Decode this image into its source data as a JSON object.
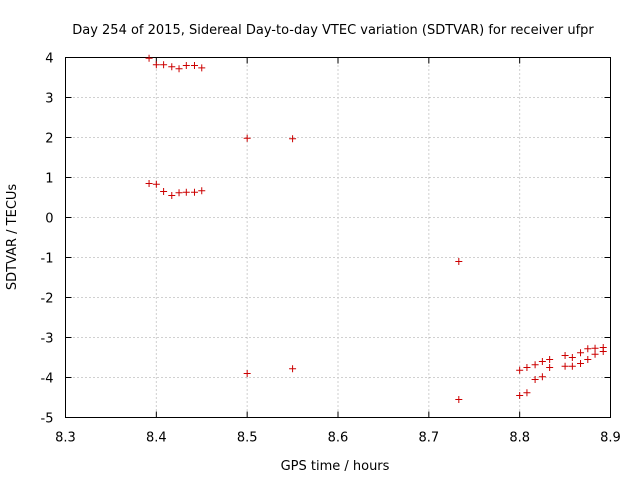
{
  "chart_data": {
    "type": "scatter",
    "title": "Day 254 of 2015, Sidereal Day-to-day VTEC variation (SDTVAR) for receiver ufpr",
    "xlabel": "GPS time / hours",
    "ylabel": "SDTVAR / TECUs",
    "xlim": [
      8.3,
      8.9
    ],
    "ylim": [
      -5,
      4
    ],
    "xticks": [
      8.3,
      8.4,
      8.5,
      8.6,
      8.7,
      8.8,
      8.9
    ],
    "xtick_labels": [
      "8.3",
      "8.4",
      "8.5",
      "8.6",
      "8.7",
      "8.8",
      "8.9"
    ],
    "yticks": [
      4,
      3,
      2,
      1,
      0,
      -1,
      -2,
      -3,
      -4,
      -5
    ],
    "ytick_labels": [
      "4",
      "3",
      "2",
      "1",
      "0",
      "-1",
      "-2",
      "-3",
      "-4",
      "-5"
    ],
    "grid": true,
    "marker": "+",
    "color": "#cc0000",
    "series": [
      {
        "name": "SDTVAR",
        "points": [
          [
            8.392,
            3.98
          ],
          [
            8.4,
            3.82
          ],
          [
            8.408,
            3.82
          ],
          [
            8.417,
            3.77
          ],
          [
            8.425,
            3.72
          ],
          [
            8.433,
            3.8
          ],
          [
            8.442,
            3.8
          ],
          [
            8.45,
            3.74
          ],
          [
            8.392,
            0.85
          ],
          [
            8.4,
            0.83
          ],
          [
            8.408,
            0.65
          ],
          [
            8.417,
            0.55
          ],
          [
            8.425,
            0.62
          ],
          [
            8.433,
            0.63
          ],
          [
            8.442,
            0.63
          ],
          [
            8.45,
            0.67
          ],
          [
            8.5,
            1.98
          ],
          [
            8.55,
            1.97
          ],
          [
            8.5,
            -3.9
          ],
          [
            8.55,
            -3.78
          ],
          [
            8.733,
            -1.1
          ],
          [
            8.733,
            -4.55
          ],
          [
            8.8,
            -3.82
          ],
          [
            8.808,
            -3.75
          ],
          [
            8.817,
            -3.68
          ],
          [
            8.825,
            -3.6
          ],
          [
            8.833,
            -3.55
          ],
          [
            8.85,
            -3.45
          ],
          [
            8.858,
            -3.5
          ],
          [
            8.867,
            -3.38
          ],
          [
            8.875,
            -3.28
          ],
          [
            8.883,
            -3.27
          ],
          [
            8.892,
            -3.25
          ],
          [
            8.8,
            -4.45
          ],
          [
            8.808,
            -4.38
          ],
          [
            8.817,
            -4.05
          ],
          [
            8.825,
            -3.98
          ],
          [
            8.833,
            -3.75
          ],
          [
            8.85,
            -3.72
          ],
          [
            8.858,
            -3.72
          ],
          [
            8.867,
            -3.65
          ],
          [
            8.875,
            -3.55
          ],
          [
            8.883,
            -3.42
          ],
          [
            8.892,
            -3.35
          ]
        ]
      }
    ]
  }
}
